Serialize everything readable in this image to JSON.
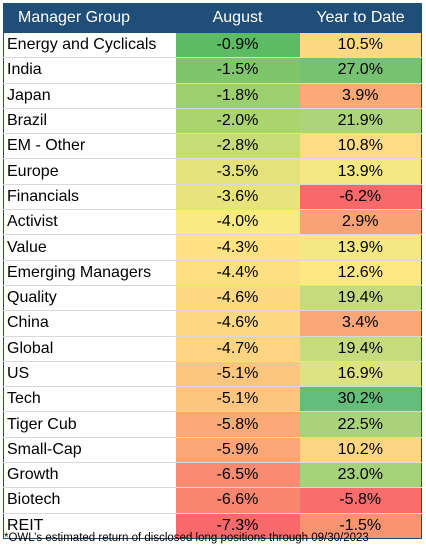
{
  "chart_data": {
    "type": "table",
    "columns": [
      "Manager Group",
      "August",
      "Year to Date"
    ],
    "rows": [
      {
        "group": "Energy and Cyclicals",
        "august": "-0.9%",
        "ytd": "10.5%",
        "august_color": "#5dbb63",
        "ytd_color": "#fed984"
      },
      {
        "group": "India",
        "august": "-1.5%",
        "ytd": "27.0%",
        "august_color": "#7fc66a",
        "ytd_color": "#77c271"
      },
      {
        "group": "Japan",
        "august": "-1.8%",
        "ytd": "3.9%",
        "august_color": "#9cd06c",
        "ytd_color": "#fbaa77"
      },
      {
        "group": "Brazil",
        "august": "-2.0%",
        "ytd": "21.9%",
        "august_color": "#a9d46e",
        "ytd_color": "#aed47a"
      },
      {
        "group": "EM - Other",
        "august": "-2.8%",
        "ytd": "10.8%",
        "august_color": "#c6dc74",
        "ytd_color": "#fedb84"
      },
      {
        "group": "Europe",
        "august": "-3.5%",
        "ytd": "13.9%",
        "august_color": "#e4e37b",
        "ytd_color": "#f4e883"
      },
      {
        "group": "Financials",
        "august": "-3.6%",
        "ytd": "-6.2%",
        "august_color": "#e8e47c",
        "ytd_color": "#f8696b"
      },
      {
        "group": "Activist",
        "august": "-4.0%",
        "ytd": "2.9%",
        "august_color": "#faea83",
        "ytd_color": "#faa275"
      },
      {
        "group": "Value",
        "august": "-4.3%",
        "ytd": "13.9%",
        "august_color": "#ffe383",
        "ytd_color": "#f4e883"
      },
      {
        "group": "Emerging Managers",
        "august": "-4.4%",
        "ytd": "12.6%",
        "august_color": "#fee083",
        "ytd_color": "#fee884"
      },
      {
        "group": "Quality",
        "august": "-4.6%",
        "ytd": "19.4%",
        "august_color": "#fed882",
        "ytd_color": "#c5dc7e"
      },
      {
        "group": "China",
        "august": "-4.6%",
        "ytd": "3.4%",
        "august_color": "#fed882",
        "ytd_color": "#fba676"
      },
      {
        "group": "Global",
        "august": "-4.7%",
        "ytd": "19.4%",
        "august_color": "#fed381",
        "ytd_color": "#c5dc7e"
      },
      {
        "group": "US",
        "august": "-5.1%",
        "ytd": "16.9%",
        "august_color": "#fdc67e",
        "ytd_color": "#dee381"
      },
      {
        "group": "Tech",
        "august": "-5.1%",
        "ytd": "30.2%",
        "august_color": "#fdc67e",
        "ytd_color": "#63be7b"
      },
      {
        "group": "Tiger Cub",
        "august": "-5.8%",
        "ytd": "22.5%",
        "august_color": "#fbaa77",
        "ytd_color": "#a9d27a"
      },
      {
        "group": "Small-Cap",
        "august": "-5.9%",
        "ytd": "10.2%",
        "august_color": "#fba676",
        "ytd_color": "#fed683"
      },
      {
        "group": "Growth",
        "august": "-6.5%",
        "ytd": "23.0%",
        "august_color": "#f98b71",
        "ytd_color": "#a4d17a"
      },
      {
        "group": "Biotech",
        "august": "-6.6%",
        "ytd": "-5.8%",
        "august_color": "#f9866f",
        "ytd_color": "#f96e6c"
      },
      {
        "group": "REIT",
        "august": "-7.3%",
        "ytd": "-1.5%",
        "august_color": "#f8696b",
        "ytd_color": "#fa936f"
      }
    ]
  },
  "footnote": "*OWL’s estimated return of disclosed long positions through 09/30/2023",
  "colors": {
    "header_bg": "#1f4e79",
    "header_text": "#ffffff"
  }
}
